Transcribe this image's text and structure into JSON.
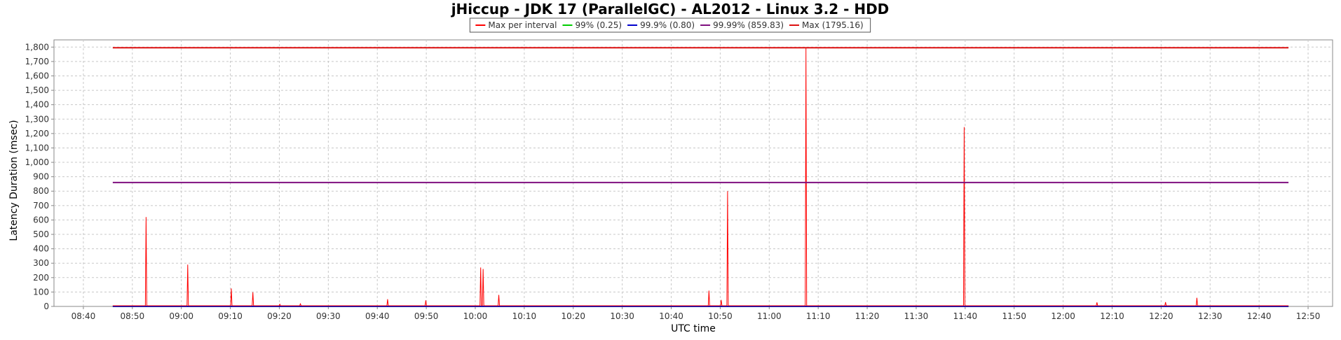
{
  "chart_data": {
    "type": "line",
    "title": "jHiccup - JDK 17 (ParallelGC) - AL2012 - Linux 3.2 - HDD",
    "xlabel": "UTC time",
    "ylabel": "Latency Duration (msec)",
    "x_ticks": [
      "08:40",
      "08:50",
      "09:00",
      "09:10",
      "09:20",
      "09:30",
      "09:40",
      "09:50",
      "10:00",
      "10:10",
      "10:20",
      "10:30",
      "10:40",
      "10:50",
      "11:00",
      "11:10",
      "11:20",
      "11:30",
      "11:40",
      "11:50",
      "12:00",
      "12:10",
      "12:20",
      "12:30",
      "12:40",
      "12:50"
    ],
    "x_range": [
      "08:34",
      "12:55"
    ],
    "ylim": [
      0,
      1850
    ],
    "y_ticks": [
      "0",
      "100",
      "200",
      "300",
      "400",
      "500",
      "600",
      "700",
      "800",
      "900",
      "1,000",
      "1,100",
      "1,200",
      "1,300",
      "1,400",
      "1,500",
      "1,600",
      "1,700",
      "1,800"
    ],
    "grid": true,
    "legend_position": "top-center",
    "series": [
      {
        "name": "Max per interval",
        "color": "#ff0000",
        "x_start": "08:46",
        "x_end": "12:46",
        "baseline": 5,
        "spikes": [
          {
            "x": "08:52.8",
            "y": 620
          },
          {
            "x": "09:01.3",
            "y": 290
          },
          {
            "x": "09:10.2",
            "y": 125
          },
          {
            "x": "09:14.6",
            "y": 98
          },
          {
            "x": "09:20.1",
            "y": 15
          },
          {
            "x": "09:24.3",
            "y": 18
          },
          {
            "x": "09:42.1",
            "y": 50
          },
          {
            "x": "09:49.9",
            "y": 42
          },
          {
            "x": "10:01.1",
            "y": 270
          },
          {
            "x": "10:01.6",
            "y": 260
          },
          {
            "x": "10:04.8",
            "y": 80
          },
          {
            "x": "10:47.7",
            "y": 110
          },
          {
            "x": "10:50.2",
            "y": 45
          },
          {
            "x": "10:51.5",
            "y": 800
          },
          {
            "x": "11:07.5",
            "y": 1795
          },
          {
            "x": "11:39.8",
            "y": 1245
          },
          {
            "x": "12:06.9",
            "y": 28
          },
          {
            "x": "12:20.9",
            "y": 30
          },
          {
            "x": "12:27.3",
            "y": 60
          }
        ]
      },
      {
        "name": "99% (0.25)",
        "color": "#00cc00",
        "value": 0.25,
        "x_start": "08:46",
        "x_end": "12:46"
      },
      {
        "name": "99.9% (0.80)",
        "color": "#0000cc",
        "value": 0.8,
        "x_start": "08:46",
        "x_end": "12:46"
      },
      {
        "name": "99.99% (859.83)",
        "color": "#7f0f7f",
        "value": 859.83,
        "x_start": "08:46",
        "x_end": "12:46"
      },
      {
        "name": "Max (1795.16)",
        "color": "#dd1111",
        "value": 1795.16,
        "x_start": "08:46",
        "x_end": "12:46"
      }
    ]
  }
}
